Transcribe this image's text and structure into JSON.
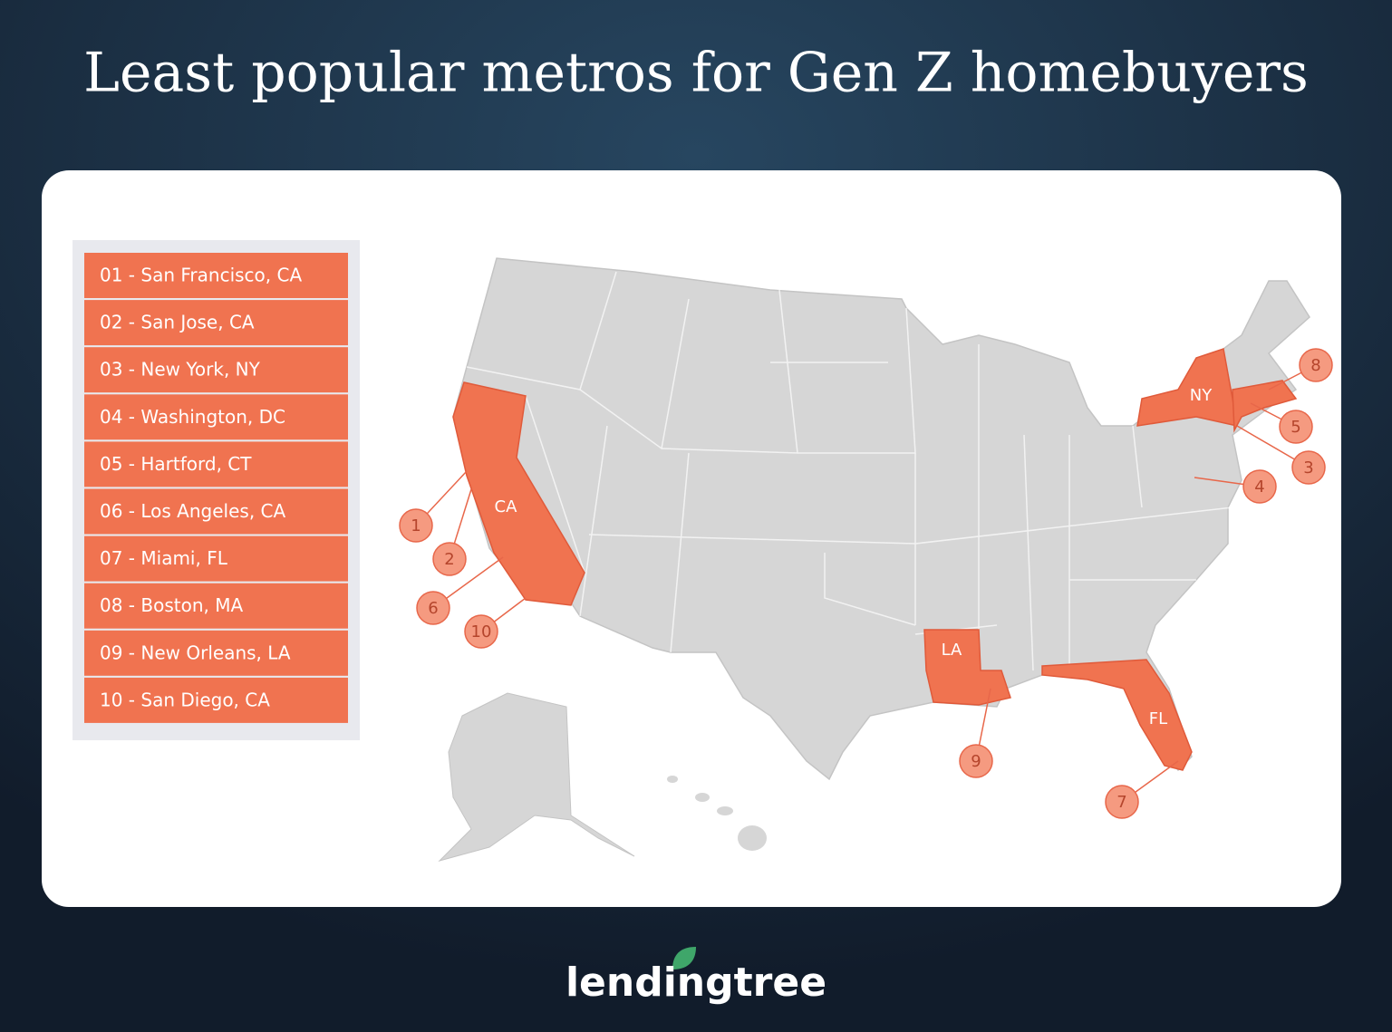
{
  "title": "Least popular metros for Gen Z homebuyers",
  "list": {
    "items": [
      "01 - San Francisco, CA",
      "02 - San Jose, CA",
      "03 - New York, NY",
      "04 - Washington, DC",
      "05 - Hartford, CT",
      "06 - Los Angeles, CA",
      "07 - Miami, FL",
      "08 - Boston, MA",
      "09 - New Orleans, LA",
      "10 - San Diego, CA"
    ]
  },
  "map": {
    "state_labels": [
      "CA",
      "NY",
      "LA",
      "FL"
    ],
    "markers": [
      "1",
      "2",
      "3",
      "4",
      "5",
      "6",
      "7",
      "8",
      "9",
      "10"
    ]
  },
  "logo": "lendingtree"
}
